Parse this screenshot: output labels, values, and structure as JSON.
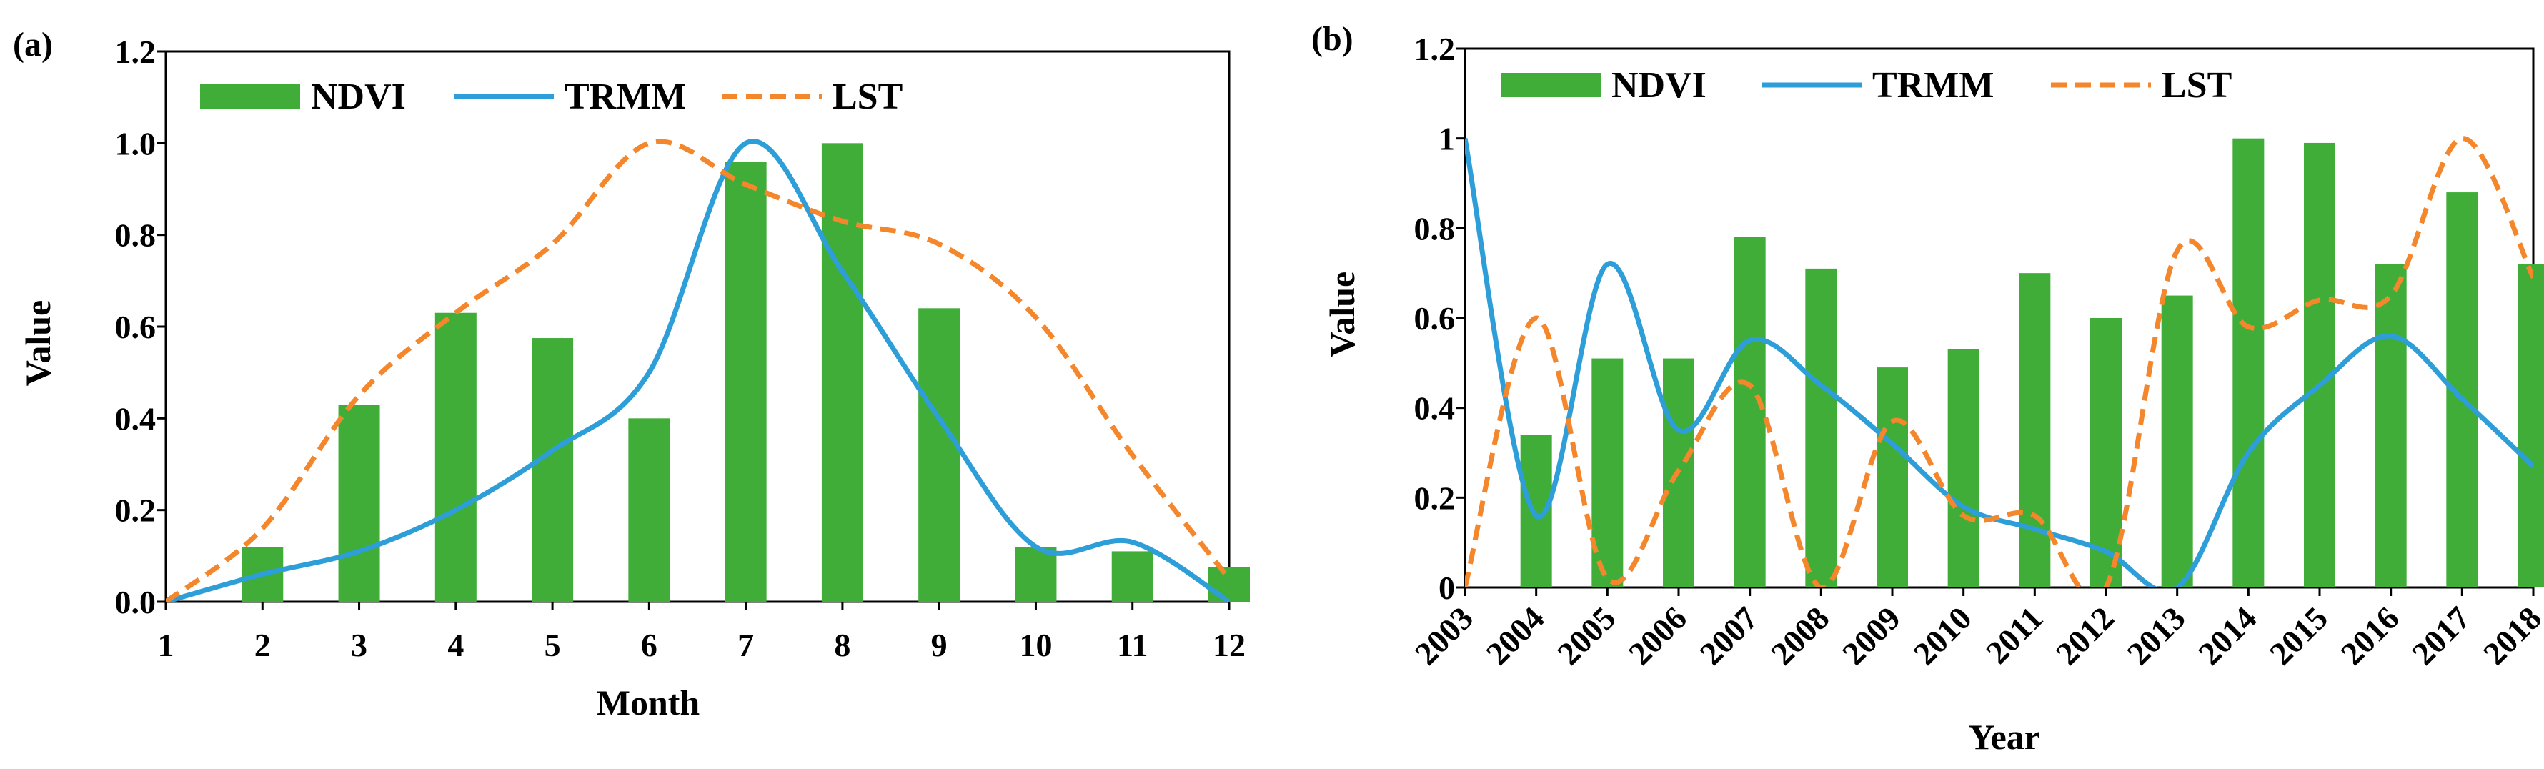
{
  "chart_data": [
    {
      "panel_label": "(a)",
      "type": "bar+line",
      "xlabel": "Month",
      "ylabel": "Value",
      "categories": [
        "1",
        "2",
        "3",
        "4",
        "5",
        "6",
        "7",
        "8",
        "9",
        "10",
        "11",
        "12"
      ],
      "y_tick_labels": [
        "0.0",
        "0.2",
        "0.4",
        "0.6",
        "0.8",
        "1.0",
        "1.2"
      ],
      "ylim": [
        0,
        1.2
      ],
      "legend": [
        "NDVI",
        "TRMM",
        "LST"
      ],
      "series": [
        {
          "name": "NDVI",
          "kind": "bar",
          "values": [
            0,
            0.12,
            0.43,
            0.63,
            0.575,
            0.4,
            0.96,
            1.0,
            0.64,
            0.12,
            0.11,
            0.075
          ]
        },
        {
          "name": "TRMM",
          "kind": "smooth-line",
          "values": [
            0,
            0.06,
            0.11,
            0.2,
            0.33,
            0.5,
            1.0,
            0.72,
            0.4,
            0.12,
            0.13,
            0.0
          ]
        },
        {
          "name": "LST",
          "kind": "smooth-dashed-line",
          "values": [
            0,
            0.16,
            0.45,
            0.63,
            0.78,
            1.0,
            0.91,
            0.83,
            0.78,
            0.62,
            0.32,
            0.05
          ]
        }
      ],
      "colors": {
        "NDVI": "#3fad38",
        "TRMM": "#2e9ed8",
        "LST": "#f4862c"
      }
    },
    {
      "panel_label": "(b)",
      "type": "bar+line",
      "xlabel": "Year",
      "ylabel": "Value",
      "categories": [
        "2003",
        "2004",
        "2005",
        "2006",
        "2007",
        "2008",
        "2009",
        "2010",
        "2011",
        "2012",
        "2013",
        "2014",
        "2015",
        "2016",
        "2017",
        "2018"
      ],
      "y_tick_labels": [
        "0",
        "0.2",
        "0.4",
        "0.6",
        "0.8",
        "1",
        "1.2"
      ],
      "ylim": [
        0,
        1.2
      ],
      "legend": [
        "NDVI",
        "TRMM",
        "LST"
      ],
      "series": [
        {
          "name": "NDVI",
          "kind": "bar",
          "values": [
            0,
            0.34,
            0.51,
            0.51,
            0.78,
            0.71,
            0.49,
            0.53,
            0.7,
            0.6,
            0.65,
            1.0,
            0.99,
            0.72,
            0.88,
            0.72
          ]
        },
        {
          "name": "TRMM",
          "kind": "smooth-line",
          "values": [
            1.0,
            0.16,
            0.72,
            0.35,
            0.55,
            0.45,
            0.32,
            0.18,
            0.13,
            0.08,
            0.0,
            0.3,
            0.45,
            0.56,
            0.42,
            0.27
          ]
        },
        {
          "name": "LST",
          "kind": "smooth-dashed-line",
          "values": [
            0,
            0.6,
            0.02,
            0.26,
            0.45,
            0.0,
            0.37,
            0.16,
            0.16,
            0.0,
            0.75,
            0.58,
            0.64,
            0.65,
            1.0,
            0.69
          ]
        }
      ],
      "colors": {
        "NDVI": "#3fad38",
        "TRMM": "#2e9ed8",
        "LST": "#f4862c"
      }
    }
  ]
}
